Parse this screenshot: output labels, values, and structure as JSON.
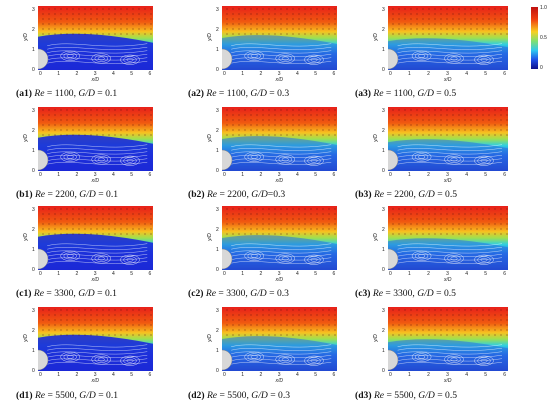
{
  "panels": [
    {
      "id": "a1",
      "label": "a1",
      "re": "1100",
      "gd": "0.1",
      "eq_spaced": true
    },
    {
      "id": "a2",
      "label": "a2",
      "re": "1100",
      "gd": "0.3",
      "eq_spaced": true
    },
    {
      "id": "a3",
      "label": "a3",
      "re": "1100",
      "gd": "0.5",
      "eq_spaced": true
    },
    {
      "id": "b1",
      "label": "b1",
      "re": "2200",
      "gd": "0.1",
      "eq_spaced": true
    },
    {
      "id": "b2",
      "label": "b2",
      "re": "2200",
      "gd": "0.3",
      "eq_spaced": false
    },
    {
      "id": "b3",
      "label": "b3",
      "re": "2200",
      "gd": "0.5",
      "eq_spaced": true
    },
    {
      "id": "c1",
      "label": "c1",
      "re": "3300",
      "gd": "0.1",
      "eq_spaced": true
    },
    {
      "id": "c2",
      "label": "c2",
      "re": "3300",
      "gd": "0.3",
      "eq_spaced": true
    },
    {
      "id": "c3",
      "label": "c3",
      "re": "3300",
      "gd": "0.5",
      "eq_spaced": true
    },
    {
      "id": "d1",
      "label": "d1",
      "re": "5500",
      "gd": "0.1",
      "eq_spaced": true
    },
    {
      "id": "d2",
      "label": "d2",
      "re": "5500",
      "gd": "0.3",
      "eq_spaced": true
    },
    {
      "id": "d3",
      "label": "d3",
      "re": "5500",
      "gd": "0.5",
      "eq_spaced": true
    }
  ],
  "caption_parts": {
    "re_symbol": "Re",
    "gd_symbol": "G/D",
    "eq": "="
  },
  "axes": {
    "x_ticks": [
      "0",
      "1",
      "2",
      "3",
      "4",
      "5",
      "6"
    ],
    "y_ticks": [
      "0",
      "1",
      "2",
      "3"
    ],
    "x_label": "x/D",
    "y_label": "y/D"
  },
  "colorbar": {
    "ticks": [
      "1.0",
      "0.5",
      "0"
    ]
  },
  "colors": {
    "low": "#1a1ad0",
    "mid": "#2fd0e0",
    "high": "#f02010"
  }
}
